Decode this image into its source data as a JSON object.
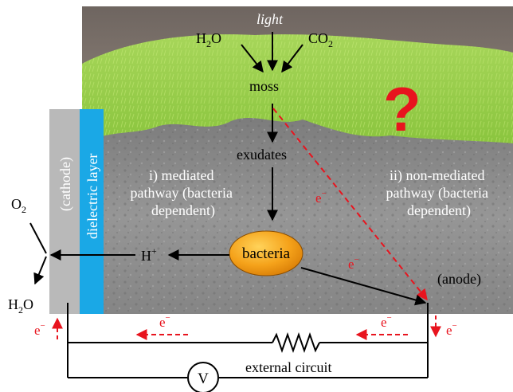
{
  "inputs": {
    "water": "H",
    "water_sub": "2",
    "water_tail": "O",
    "light": "light",
    "co2": "CO",
    "co2_sub": "2"
  },
  "moss": "moss",
  "exudates": "exudates",
  "bacteria": "bacteria",
  "question_mark": "?",
  "pathway_mediated": [
    "i) mediated",
    "pathway (bacteria",
    "dependent)"
  ],
  "pathway_non_mediated": [
    "ii) non-mediated",
    "pathway (bacteria",
    "dependent)"
  ],
  "cathode_label": "(cathode)",
  "dielectric_label": "dielectric layer",
  "anode_label": "(anode)",
  "o2": "O",
  "o2_sub": "2",
  "h2o_out": "H",
  "h2o_out_sub": "2",
  "h2o_out_tail": "O",
  "proton": "H",
  "proton_sup": "+",
  "electron": "e",
  "electron_sup": "−",
  "external_circuit": "external circuit",
  "voltmeter": "V",
  "colors": {
    "electron_red": "#e8141e",
    "bacteria_fill": "#f5a21a",
    "cathode_grey": "#b9b9b9",
    "dielectric_blue": "#1aa8e6",
    "moss_green": "#8cc63f",
    "rock_grey": "#8e8e8e"
  }
}
